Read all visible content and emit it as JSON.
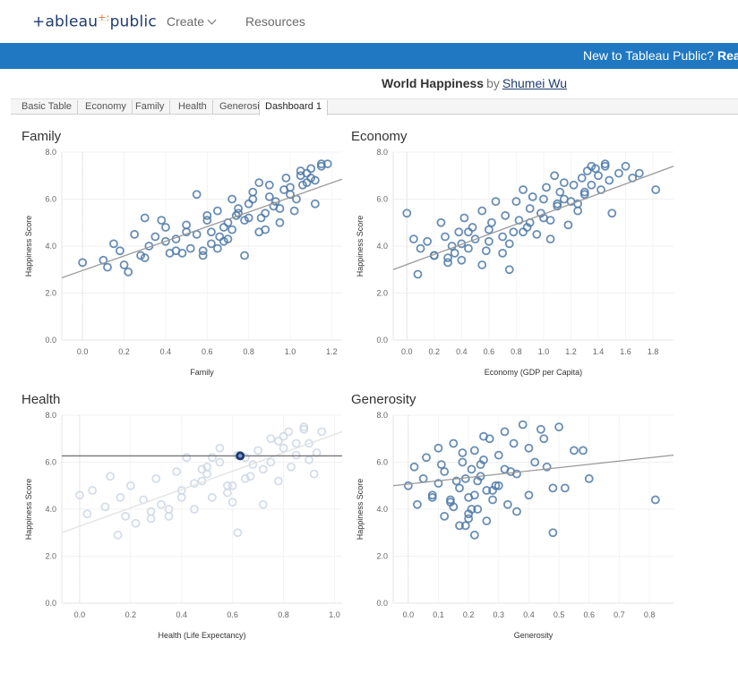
{
  "nav": {
    "logo_text": "+ableau",
    "logo_dots": "+:",
    "logo_tail": "public",
    "create_label": "Create",
    "resources_label": "Resources"
  },
  "banner": {
    "text": "New to Tableau Public? ",
    "link": "Read our"
  },
  "viz": {
    "title": "World Happiness",
    "by": "by",
    "author": "Shumei Wu"
  },
  "tabs": [
    "Basic Table",
    "Economy",
    "Family",
    "Health",
    "Generosity",
    "Dashboard 1"
  ],
  "colors": {
    "marker": "#4e79a7",
    "trend": "#999999",
    "banner": "#1f78c1"
  },
  "chart_data": [
    {
      "type": "scatter",
      "title": "Family",
      "xlabel": "Family",
      "ylabel": "Happiness Score",
      "xlim": [
        -0.1,
        1.25
      ],
      "ylim": [
        0,
        8
      ],
      "xticks": [
        "0.0",
        "0.2",
        "0.4",
        "0.6",
        "0.8",
        "1.0",
        "1.2"
      ],
      "yticks": [
        "0.0",
        "2.0",
        "4.0",
        "6.0",
        "8.0"
      ],
      "trendline": [
        [
          -0.1,
          2.65
        ],
        [
          1.25,
          6.85
        ]
      ],
      "x": [
        0.0,
        0.1,
        0.12,
        0.15,
        0.18,
        0.2,
        0.22,
        0.25,
        0.28,
        0.3,
        0.32,
        0.35,
        0.38,
        0.4,
        0.42,
        0.45,
        0.48,
        0.5,
        0.52,
        0.55,
        0.58,
        0.6,
        0.62,
        0.65,
        0.68,
        0.7,
        0.72,
        0.75,
        0.78,
        0.8,
        0.82,
        0.85,
        0.88,
        0.9,
        0.92,
        0.95,
        0.98,
        1.0,
        1.02,
        1.05,
        1.08,
        1.1,
        1.12,
        1.15,
        1.18,
        0.55,
        0.62,
        0.7,
        0.75,
        0.82,
        0.88,
        0.93,
        1.0,
        1.05,
        0.65,
        0.72,
        0.8,
        0.9,
        1.1,
        1.15,
        0.45,
        0.5,
        0.6,
        0.68,
        0.78,
        0.85,
        0.95,
        1.03,
        1.08,
        1.12,
        0.3,
        0.4,
        0.58,
        0.66,
        0.74,
        0.86,
        0.97,
        1.06
      ],
      "y": [
        3.3,
        3.4,
        3.1,
        4.1,
        3.8,
        3.2,
        2.9,
        4.5,
        3.6,
        5.2,
        4.0,
        4.4,
        5.1,
        4.8,
        3.7,
        4.3,
        3.7,
        4.9,
        3.9,
        4.5,
        3.8,
        5.3,
        4.6,
        5.5,
        4.2,
        5.0,
        6.0,
        5.6,
        3.6,
        5.2,
        6.3,
        4.6,
        5.4,
        6.6,
        5.7,
        5.0,
        6.9,
        6.2,
        5.5,
        7.2,
        6.7,
        7.3,
        5.8,
        7.4,
        7.5,
        6.2,
        4.1,
        4.3,
        5.4,
        6.0,
        4.7,
        5.9,
        6.5,
        7.0,
        3.9,
        4.7,
        5.8,
        6.1,
        6.9,
        7.5,
        3.8,
        4.6,
        5.1,
        4.8,
        5.1,
        6.7,
        5.6,
        6.0,
        7.1,
        6.8,
        3.5,
        4.2,
        3.6,
        4.4,
        5.3,
        5.2,
        6.4,
        6.6
      ]
    },
    {
      "type": "scatter",
      "title": "Economy",
      "xlabel": "Economy (GDP per Capita)",
      "ylabel": "Happiness Score",
      "xlim": [
        -0.1,
        1.95
      ],
      "ylim": [
        0,
        8
      ],
      "xticks": [
        "0.0",
        "0.2",
        "0.4",
        "0.6",
        "0.8",
        "1.0",
        "1.2",
        "1.4",
        "1.6",
        "1.8"
      ],
      "yticks": [
        "0.0",
        "2.0",
        "4.0",
        "6.0",
        "8.0"
      ],
      "trendline": [
        [
          -0.1,
          3.0
        ],
        [
          1.95,
          7.4
        ]
      ],
      "x": [
        0.0,
        0.05,
        0.08,
        0.1,
        0.15,
        0.2,
        0.25,
        0.28,
        0.3,
        0.33,
        0.35,
        0.38,
        0.4,
        0.42,
        0.45,
        0.48,
        0.5,
        0.55,
        0.58,
        0.6,
        0.62,
        0.65,
        0.7,
        0.72,
        0.75,
        0.78,
        0.8,
        0.82,
        0.85,
        0.88,
        0.9,
        0.92,
        0.95,
        0.98,
        1.0,
        1.02,
        1.05,
        1.08,
        1.1,
        1.12,
        1.15,
        1.18,
        1.2,
        1.22,
        1.25,
        1.28,
        1.3,
        1.32,
        1.35,
        1.38,
        1.4,
        1.42,
        1.45,
        1.48,
        1.5,
        1.55,
        1.6,
        1.65,
        1.7,
        1.82,
        0.3,
        0.45,
        0.6,
        0.75,
        0.9,
        1.05,
        1.15,
        1.25,
        1.35,
        1.45,
        0.2,
        0.4,
        0.55,
        0.7,
        0.85,
        1.0,
        1.1,
        1.3
      ],
      "y": [
        5.4,
        4.3,
        2.8,
        3.9,
        4.2,
        3.6,
        5.0,
        4.4,
        3.3,
        4.0,
        3.7,
        4.6,
        4.1,
        5.2,
        3.9,
        4.8,
        4.3,
        5.5,
        3.8,
        4.7,
        5.0,
        5.9,
        4.4,
        5.3,
        3.0,
        4.6,
        5.9,
        5.1,
        6.4,
        4.8,
        5.6,
        6.1,
        4.5,
        5.4,
        6.0,
        6.5,
        5.1,
        7.0,
        5.8,
        6.3,
        6.7,
        4.9,
        5.9,
        6.6,
        5.5,
        6.9,
        6.2,
        7.2,
        6.6,
        7.3,
        7.0,
        6.4,
        7.5,
        6.8,
        5.4,
        7.1,
        7.4,
        6.9,
        7.1,
        6.4,
        3.5,
        4.6,
        4.2,
        4.1,
        5.0,
        4.3,
        6.0,
        5.8,
        7.4,
        7.4,
        3.6,
        3.4,
        3.2,
        3.7,
        4.6,
        5.2,
        5.7,
        6.3
      ]
    },
    {
      "type": "scatter",
      "title": "Health",
      "xlabel": "Health (Life Expectancy)",
      "ylabel": "Happiness Score",
      "xlim": [
        -0.07,
        1.03
      ],
      "ylim": [
        0,
        8
      ],
      "xticks": [
        "0.0",
        "0.2",
        "0.4",
        "0.6",
        "0.8",
        "1.0"
      ],
      "yticks": [
        "0.0",
        "2.0",
        "4.0",
        "6.0",
        "8.0"
      ],
      "trendline": [
        [
          -0.07,
          3.0
        ],
        [
          1.03,
          7.3
        ]
      ],
      "reference_line": 6.27,
      "highlighted_point": [
        0.63,
        6.27
      ],
      "x": [
        0.0,
        0.03,
        0.05,
        0.1,
        0.12,
        0.15,
        0.16,
        0.18,
        0.2,
        0.22,
        0.25,
        0.28,
        0.3,
        0.32,
        0.35,
        0.38,
        0.4,
        0.42,
        0.45,
        0.48,
        0.5,
        0.52,
        0.55,
        0.58,
        0.6,
        0.62,
        0.65,
        0.67,
        0.7,
        0.72,
        0.75,
        0.78,
        0.8,
        0.82,
        0.85,
        0.88,
        0.9,
        0.92,
        0.95,
        0.35,
        0.45,
        0.55,
        0.6,
        0.68,
        0.75,
        0.85,
        0.5,
        0.58,
        0.62,
        0.72,
        0.8,
        0.9,
        0.28,
        0.4,
        0.48,
        0.52,
        0.65,
        0.78,
        0.83,
        0.88,
        0.93
      ],
      "y": [
        4.6,
        3.8,
        4.8,
        4.1,
        5.4,
        2.9,
        4.5,
        3.7,
        5.0,
        3.4,
        4.4,
        3.9,
        5.3,
        4.2,
        3.7,
        5.6,
        4.8,
        6.2,
        4.0,
        5.2,
        5.8,
        4.5,
        6.0,
        4.7,
        5.0,
        3.0,
        6.2,
        5.4,
        6.5,
        5.7,
        7.0,
        5.2,
        6.6,
        7.3,
        6.3,
        7.5,
        6.8,
        5.5,
        7.3,
        4.0,
        5.1,
        6.6,
        4.3,
        5.9,
        6.0,
        6.8,
        5.5,
        5.0,
        6.3,
        4.2,
        7.1,
        6.1,
        3.6,
        4.5,
        5.7,
        6.2,
        5.3,
        6.9,
        5.8,
        7.4,
        6.4
      ]
    },
    {
      "type": "scatter",
      "title": "Generosity",
      "xlabel": "Generosity",
      "ylabel": "Happiness Score",
      "xlim": [
        -0.05,
        0.88
      ],
      "ylim": [
        0,
        8
      ],
      "xticks": [
        "0.0",
        "0.1",
        "0.2",
        "0.3",
        "0.4",
        "0.5",
        "0.6",
        "0.7",
        "0.8"
      ],
      "yticks": [
        "0.0",
        "2.0",
        "4.0",
        "6.0",
        "8.0"
      ],
      "trendline": [
        [
          -0.05,
          5.0
        ],
        [
          0.88,
          6.3
        ]
      ],
      "x": [
        0.0,
        0.02,
        0.03,
        0.05,
        0.06,
        0.08,
        0.1,
        0.1,
        0.12,
        0.12,
        0.14,
        0.15,
        0.16,
        0.17,
        0.18,
        0.19,
        0.2,
        0.21,
        0.22,
        0.22,
        0.23,
        0.24,
        0.25,
        0.26,
        0.27,
        0.28,
        0.3,
        0.3,
        0.32,
        0.33,
        0.35,
        0.36,
        0.38,
        0.4,
        0.42,
        0.44,
        0.46,
        0.48,
        0.5,
        0.52,
        0.55,
        0.58,
        0.6,
        0.82,
        0.08,
        0.11,
        0.15,
        0.18,
        0.2,
        0.23,
        0.25,
        0.28,
        0.32,
        0.36,
        0.4,
        0.45,
        0.2,
        0.22,
        0.19,
        0.21,
        0.24,
        0.17,
        0.26,
        0.14,
        0.29,
        0.34,
        0.48
      ],
      "y": [
        5.0,
        5.8,
        4.2,
        5.3,
        6.2,
        4.6,
        5.1,
        6.6,
        3.7,
        5.6,
        4.3,
        6.8,
        5.2,
        4.9,
        6.0,
        3.3,
        4.5,
        5.7,
        2.9,
        6.5,
        4.0,
        5.4,
        6.1,
        3.5,
        7.0,
        4.8,
        6.3,
        5.0,
        7.3,
        4.2,
        6.8,
        5.5,
        7.6,
        4.6,
        6.0,
        7.4,
        5.8,
        3.0,
        7.5,
        4.9,
        6.5,
        6.5,
        5.3,
        4.4,
        4.5,
        5.9,
        4.1,
        6.4,
        3.8,
        5.2,
        7.1,
        4.4,
        5.7,
        3.9,
        6.6,
        7.0,
        3.6,
        4.6,
        5.3,
        4.0,
        5.9,
        3.3,
        4.8,
        4.4,
        5.0,
        5.6,
        4.9
      ]
    }
  ]
}
